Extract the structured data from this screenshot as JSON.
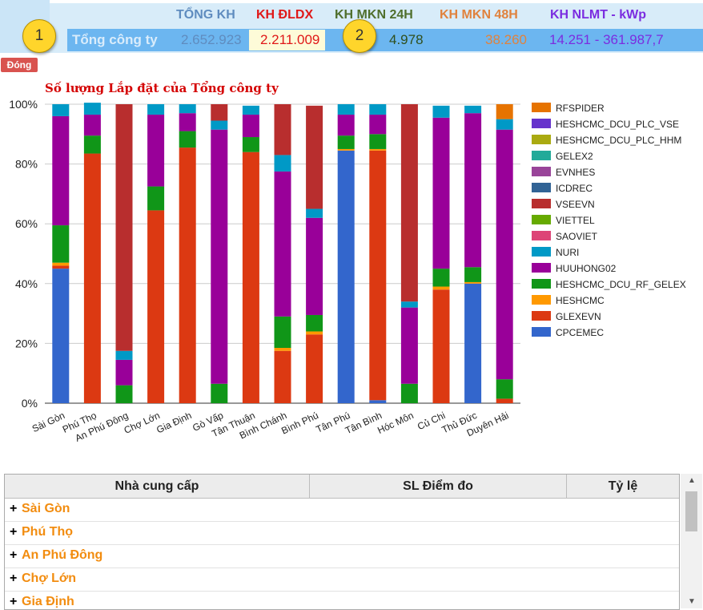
{
  "summary": {
    "headers": [
      {
        "label": "TỔNG KH",
        "color": "#5f8cbf"
      },
      {
        "label": "KH ĐLDX",
        "color": "#e01818"
      },
      {
        "label": "KH MKN 24H",
        "color": "#4f6f2c"
      },
      {
        "label": "KH MKN 48H",
        "color": "#e0823d"
      },
      {
        "label": "KH NLMT - kWp",
        "color": "#7b2de0"
      }
    ],
    "row_label": "Tổng công ty",
    "values": [
      {
        "text": "2.652.923",
        "color": "#5f8cbf"
      },
      {
        "text": "2.211.009",
        "color": "#e01818"
      },
      {
        "text": "4.978",
        "color": "#2f4f1c"
      },
      {
        "text": "38.260",
        "color": "#e0823d"
      },
      {
        "text": "14.251 - 361.987,7",
        "color": "#7b2de0"
      }
    ],
    "callouts": [
      "1",
      "2"
    ]
  },
  "close_button": "Đóng",
  "chart_title": "Số lượng Lắp đặt của Tổng công ty",
  "chart_data": {
    "type": "bar",
    "stacked": true,
    "percent": true,
    "title": "Số lượng Lắp đặt của Tổng công ty",
    "ylim": [
      0,
      100
    ],
    "yticks": [
      "0%",
      "20%",
      "40%",
      "60%",
      "80%",
      "100%"
    ],
    "legend_position": "right",
    "categories": [
      "Sài Gòn",
      "Phú Thọ",
      "An Phú Đông",
      "Chợ Lớn",
      "Gia Định",
      "Gò Vấp",
      "Tân Thuận",
      "Bình Chánh",
      "Bình Phú",
      "Tân Phú",
      "Tân Bình",
      "Hóc Môn",
      "Củ Chi",
      "Thủ Đức",
      "Duyên Hải"
    ],
    "series": [
      {
        "name": "CPCEMEC",
        "color": "#3366cc",
        "values": [
          45,
          0,
          0,
          0,
          0,
          0,
          0,
          0,
          0,
          84.5,
          1,
          0,
          0,
          40,
          0
        ]
      },
      {
        "name": "GLEXEVN",
        "color": "#dc3912",
        "values": [
          1,
          83.5,
          0,
          64.5,
          85.5,
          0,
          84,
          17.5,
          23,
          0,
          83.5,
          0,
          38,
          0,
          1.5
        ]
      },
      {
        "name": "HESHCMC",
        "color": "#ff9900",
        "values": [
          1,
          0,
          0,
          0,
          0,
          0,
          0,
          1,
          1,
          0.5,
          0.5,
          0,
          1,
          0.5,
          0
        ]
      },
      {
        "name": "HESHCMC_DCU_RF_GELEX",
        "color": "#109618",
        "values": [
          12.5,
          6,
          6,
          8,
          5.5,
          6.5,
          5,
          10.5,
          5.5,
          4.5,
          5,
          6.5,
          6,
          5,
          6.5
        ]
      },
      {
        "name": "HUUHONG02",
        "color": "#990099",
        "values": [
          36.5,
          7,
          8.5,
          24,
          6,
          85,
          7.5,
          48.5,
          32.5,
          7,
          6.5,
          25.5,
          50.5,
          51.5,
          83.5
        ]
      },
      {
        "name": "NURI",
        "color": "#0099c6",
        "values": [
          4,
          4,
          3,
          3.5,
          3,
          3,
          3,
          5.5,
          3,
          3.5,
          3.5,
          2,
          4,
          2.5,
          3.5
        ]
      },
      {
        "name": "SAOVIET",
        "color": "#dd4477",
        "values": [
          0,
          0,
          0,
          0,
          0,
          0,
          0,
          0,
          0,
          0,
          0,
          0,
          0,
          0,
          0
        ]
      },
      {
        "name": "VIETTEL",
        "color": "#66aa00",
        "values": [
          0,
          0,
          0,
          0,
          0,
          0,
          0,
          0,
          0,
          0,
          0,
          0,
          0,
          0,
          0
        ]
      },
      {
        "name": "VSEEVN",
        "color": "#b82e2e",
        "values": [
          0,
          0,
          82.5,
          0,
          0,
          5.5,
          0,
          17,
          34.5,
          0,
          0,
          66,
          0,
          0,
          0
        ]
      },
      {
        "name": "ICDREC",
        "color": "#316395",
        "values": [
          0,
          0,
          0,
          0,
          0,
          0,
          0,
          0,
          0,
          0,
          0,
          0,
          0,
          0,
          0
        ]
      },
      {
        "name": "EVNHES",
        "color": "#994499",
        "values": [
          0,
          0,
          0,
          0,
          0,
          0,
          0,
          0,
          0,
          0,
          0,
          0,
          0,
          0,
          0
        ]
      },
      {
        "name": "GELEX2",
        "color": "#22aa99",
        "values": [
          0,
          0,
          0,
          0,
          0,
          0,
          0,
          0,
          0,
          0,
          0,
          0,
          0,
          0,
          0
        ]
      },
      {
        "name": "HESHCMC_DCU_PLC_HHM",
        "color": "#aaaa11",
        "values": [
          0,
          0,
          0,
          0,
          0,
          0,
          0,
          0,
          0,
          0,
          0,
          0,
          0,
          0,
          0
        ]
      },
      {
        "name": "HESHCMC_DCU_PLC_VSE",
        "color": "#6633cc",
        "values": [
          0,
          0,
          0,
          0,
          0,
          0,
          0,
          0,
          0,
          0,
          0,
          0,
          0,
          0,
          0
        ]
      },
      {
        "name": "RFSPIDER",
        "color": "#e67300",
        "values": [
          0,
          0,
          0,
          0,
          0,
          0,
          0,
          0,
          0,
          0,
          0,
          0,
          0,
          0,
          5
        ]
      }
    ]
  },
  "table": {
    "columns": [
      "Nhà cung cấp",
      "SL Điểm đo",
      "Tỷ lệ"
    ],
    "expand_symbol": "+",
    "rows": [
      "Sài Gòn",
      "Phú Thọ",
      "An Phú Đông",
      "Chợ Lớn",
      "Gia Định"
    ]
  },
  "scrollbar": {
    "up": "▲",
    "down": "▼"
  }
}
